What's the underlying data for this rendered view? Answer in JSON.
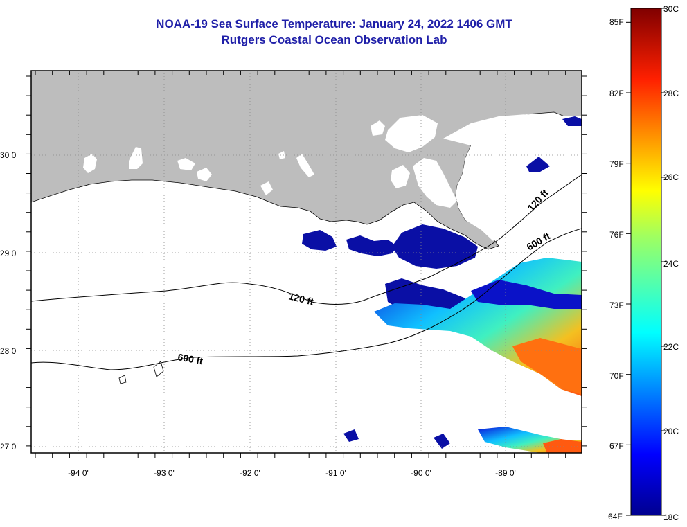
{
  "map": {
    "title": "NOAA-19 Sea Surface Temperature:  January 24, 2022 1406 GMT",
    "subtitle": "Rutgers Coastal Ocean Observation Lab",
    "lat_labels": [
      "30 0'",
      "29 0'",
      "28 0'",
      "27 0'"
    ],
    "lon_labels": [
      "-94 0'",
      "-93 0'",
      "-92 0'",
      "-91 0'",
      "-90 0'",
      "-89 0'"
    ],
    "contour_labels": [
      "120 ft",
      "600 ft",
      "120 ft",
      "600 ft"
    ],
    "colors": {
      "land": "#bdbdbd",
      "ocean_no_data": "#ffffff",
      "title": "#1f1fa8"
    }
  },
  "colorbar": {
    "fahrenheit": [
      "85F",
      "82F",
      "79F",
      "76F",
      "73F",
      "70F",
      "67F",
      "64F"
    ],
    "celsius": [
      "30C",
      "28C",
      "26C",
      "24C",
      "22C",
      "20C",
      "18C"
    ],
    "range_c": [
      18,
      30
    ],
    "colormap": "jet"
  }
}
